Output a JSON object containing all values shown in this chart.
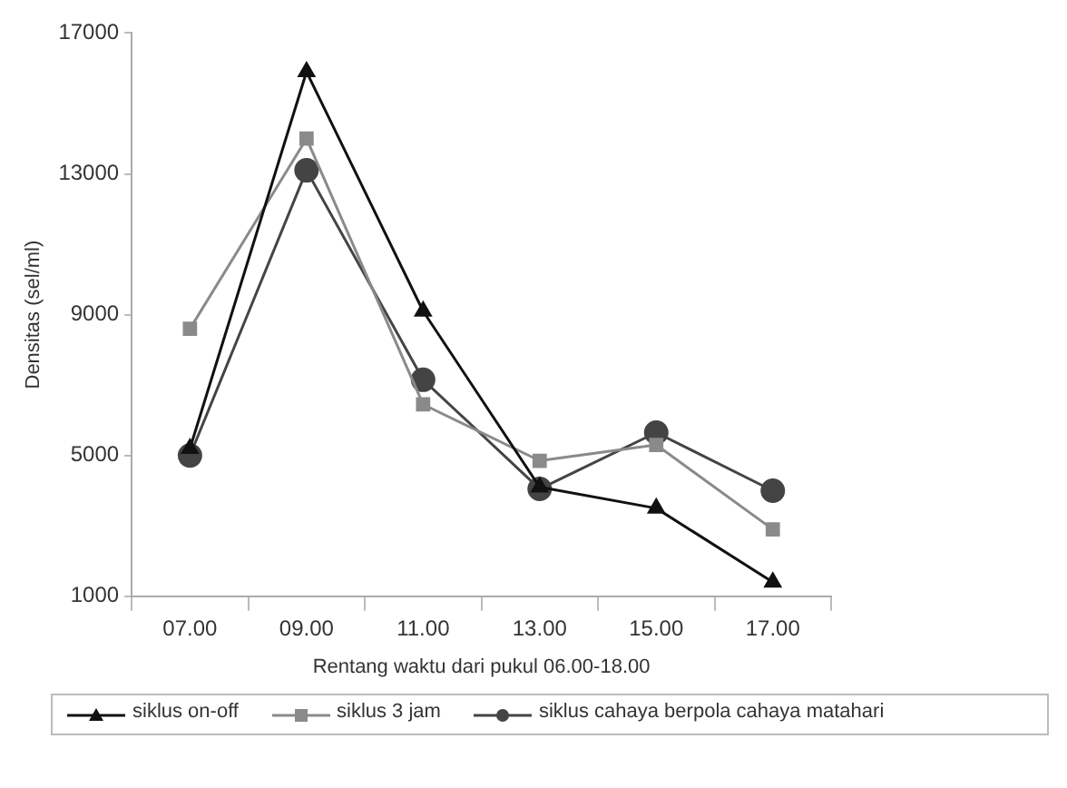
{
  "chart_data": {
    "type": "line",
    "xlabel": "Rentang waktu dari pukul 06.00-18.00",
    "ylabel": "Densitas (sel/ml)",
    "categories": [
      "07.00",
      "09.00",
      "11.00",
      "13.00",
      "15.00",
      "17.00"
    ],
    "series": [
      {
        "name": "siklus on-off",
        "color": "#111111",
        "marker": "triangle",
        "values": [
          5200,
          15900,
          9100,
          4100,
          3500,
          1400
        ]
      },
      {
        "name": "siklus 3 jam",
        "color": "#8a8a8a",
        "marker": "square",
        "values": [
          8600,
          14000,
          6450,
          4850,
          5300,
          2900
        ]
      },
      {
        "name": "siklus cahaya berpola cahaya matahari",
        "color": "#444444",
        "marker": "circle",
        "values": [
          5000,
          13100,
          7150,
          4050,
          5650,
          4000
        ]
      }
    ],
    "ylim": [
      1000,
      17000
    ],
    "yticks": [
      1000,
      5000,
      9000,
      13000,
      17000
    ],
    "grid": false,
    "legend": "bottom",
    "line_style": "solid"
  }
}
